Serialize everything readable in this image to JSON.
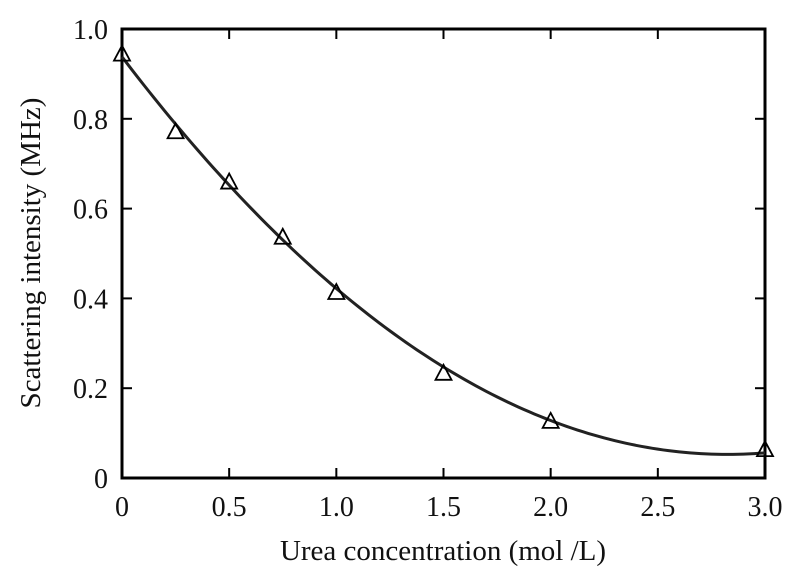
{
  "chart_data": {
    "type": "scatter",
    "title": "",
    "xlabel": "Urea concentration (mol /L)",
    "ylabel": "Scattering intensity (MHz)",
    "xlim": [
      0,
      3.0
    ],
    "ylim": [
      0,
      1.0
    ],
    "x_ticks": [
      0,
      0.5,
      1.0,
      1.5,
      2.0,
      2.5,
      3.0
    ],
    "x_tick_labels": [
      "0",
      "0.5",
      "1.0",
      "1.5",
      "2.0",
      "2.5",
      "3.0"
    ],
    "y_ticks": [
      0,
      0.2,
      0.4,
      0.6,
      0.8,
      1.0
    ],
    "y_tick_labels": [
      "0",
      "0.2",
      "0.4",
      "0.6",
      "0.8",
      "1.0"
    ],
    "grid": false,
    "legend": "none",
    "series": [
      {
        "marker": "open-triangle",
        "x": [
          0,
          0.25,
          0.5,
          0.75,
          1.0,
          1.5,
          2.0,
          3.0
        ],
        "y": [
          0.943,
          0.77,
          0.658,
          0.535,
          0.412,
          0.232,
          0.125,
          0.062
        ]
      }
    ],
    "fit_curve": {
      "type": "quadratic",
      "coefficients": [
        0.938,
        -0.627,
        0.111
      ],
      "x_range": [
        0,
        3.0
      ]
    },
    "colors": {
      "curve": "#222222",
      "markers": "#000000",
      "axes": "#000000"
    }
  }
}
